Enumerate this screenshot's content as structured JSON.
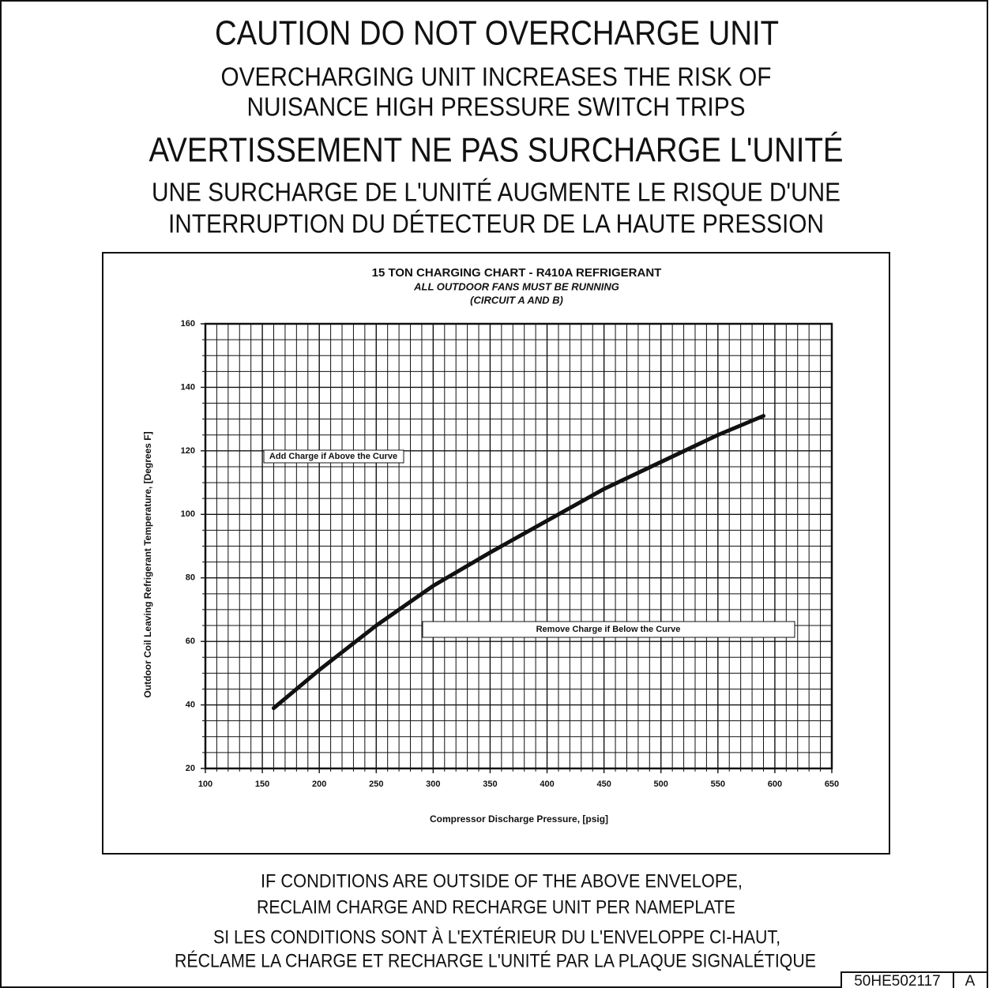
{
  "header": {
    "caution": "CAUTION DO NOT OVERCHARGE UNIT",
    "caution_lines": [
      "OVERCHARGING UNIT INCREASES THE RISK OF",
      "NUISANCE HIGH PRESSURE SWITCH TRIPS"
    ],
    "avertissement": "AVERTISSEMENT NE PAS SURCHARGE L'UNITÉ",
    "avertissement_lines": [
      "UNE SURCHARGE DE L'UNITÉ AUGMENTE LE RISQUE D'UNE",
      "INTERRUPTION DU DÉTECTEUR DE LA HAUTE PRESSION"
    ]
  },
  "chart_data": {
    "type": "line",
    "title": "15 TON CHARGING CHART - R410A REFRIGERANT",
    "subtitle": [
      "ALL OUTDOOR FANS MUST BE RUNNING",
      "(CIRCUIT A AND B)"
    ],
    "x_label": "Compressor Discharge Pressure, [psig]",
    "y_label": "Outdoor Coil Leaving Refrigerant Temperature, [Degrees F]",
    "annotations": [
      "Add Charge if Above the Curve",
      "Remove Charge if Below the Curve"
    ],
    "x": [
      160,
      200,
      250,
      300,
      350,
      400,
      430,
      450,
      500,
      550,
      590
    ],
    "series": [
      {
        "color": "#111111",
        "values": [
          39,
          51,
          65,
          77.5,
          88,
          98,
          104,
          108,
          116.5,
          125,
          131
        ]
      }
    ],
    "xlim": [
      100,
      650
    ],
    "ylim": [
      20,
      160
    ],
    "xticks": [
      100,
      150,
      200,
      250,
      300,
      350,
      400,
      450,
      500,
      550,
      600,
      650
    ],
    "yticks": [
      20,
      40,
      60,
      80,
      100,
      120,
      140,
      160
    ],
    "x_minor_ticks": [
      110,
      120,
      130,
      140,
      160,
      170,
      180,
      190,
      210,
      220,
      230,
      240,
      260,
      270,
      280,
      290,
      310,
      320,
      330,
      340,
      360,
      370,
      380,
      390,
      410,
      420,
      430,
      440,
      460,
      470,
      480,
      490,
      510,
      520,
      530,
      540,
      560,
      570,
      580,
      590,
      610,
      620,
      630,
      640
    ],
    "y_minor_ticks": [
      25,
      30,
      35,
      45,
      50,
      55,
      65,
      70,
      75,
      85,
      90,
      95,
      105,
      110,
      115,
      125,
      130,
      135,
      145,
      150,
      155
    ],
    "grid": true
  },
  "footer": {
    "lines": [
      "IF CONDITIONS ARE OUTSIDE OF THE ABOVE ENVELOPE,",
      "RECLAIM CHARGE AND RECHARGE UNIT PER NAMEPLATE",
      "SI LES CONDITIONS SONT À L'EXTÉRIEUR DU L'ENVELOPPE CI-HAUT,",
      "RÉCLAME LA CHARGE ET RECHARGE L'UNITÉ PAR LA PLAQUE SIGNALÉTIQUE"
    ],
    "part_number": "50HE502117",
    "revision": "A"
  }
}
